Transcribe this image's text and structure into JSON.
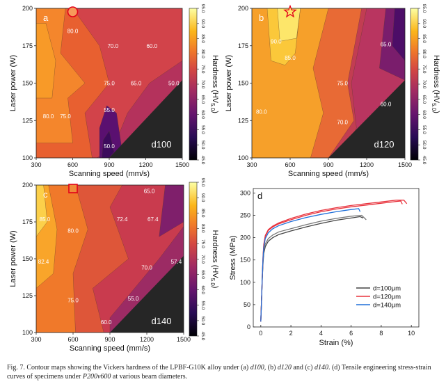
{
  "colorbar": {
    "ticks": [
      "95.0",
      "90.0",
      "85.0",
      "80.0",
      "75.0",
      "70.0",
      "65.0",
      "60.0",
      "55.0",
      "50.0",
      "45.0"
    ],
    "label_main": "Hardness (HV",
    "label_sub": "5.0",
    "label_end": ")"
  },
  "caption": {
    "lead": "Fig. 7. Contour maps showing the Vickers hardness of the LPBF-G10K alloy under (a) ",
    "d1": "d100",
    "mid1": ", (b) ",
    "d2": "d120",
    "mid2": " and (c) ",
    "d3": "d140",
    "mid3": ". (d) Tensile engineering stress-strain curves of specimens under ",
    "cond": "P200v600",
    "tail": " at various beam diameters."
  },
  "chart_data": [
    {
      "type": "heatmap",
      "panel": "a",
      "name": "d100",
      "xlabel": "Scanning speed (mm/s)",
      "ylabel": "Laser power (W)",
      "xlim": [
        300,
        1500
      ],
      "ylim": [
        100,
        200
      ],
      "xticks": [
        "300",
        "600",
        "900",
        "1200",
        "1500"
      ],
      "yticks": [
        "100",
        "125",
        "150",
        "175",
        "200"
      ],
      "colorbar_range": [
        45,
        95
      ],
      "marker": {
        "shape": "circle",
        "x": 600,
        "y": 200
      },
      "contour_labels": [
        {
          "text": "80.0",
          "x": 600,
          "y": 185
        },
        {
          "text": "70.0",
          "x": 930,
          "y": 175
        },
        {
          "text": "60.0",
          "x": 1250,
          "y": 175
        },
        {
          "text": "75.0",
          "x": 900,
          "y": 150
        },
        {
          "text": "65.0",
          "x": 1120,
          "y": 150
        },
        {
          "text": "50.0",
          "x": 1430,
          "y": 150
        },
        {
          "text": "80.0",
          "x": 400,
          "y": 128
        },
        {
          "text": "75.0",
          "x": 540,
          "y": 128
        },
        {
          "text": "55.0",
          "x": 900,
          "y": 132
        },
        {
          "text": "50.0",
          "x": 900,
          "y": 108
        }
      ],
      "no_data_triangle": [
        [
          900,
          100
        ],
        [
          1500,
          100
        ],
        [
          1500,
          152
        ]
      ]
    },
    {
      "type": "heatmap",
      "panel": "b",
      "name": "d120",
      "xlabel": "Scanning speed (mm/s)",
      "ylabel": "Laser power (W)",
      "xlim": [
        300,
        1500
      ],
      "ylim": [
        100,
        200
      ],
      "xticks": [
        "300",
        "600",
        "900",
        "1200",
        "1500"
      ],
      "yticks": [
        "100",
        "125",
        "150",
        "175",
        "200"
      ],
      "colorbar_range": [
        45,
        95
      ],
      "marker": {
        "shape": "star",
        "x": 600,
        "y": 200
      },
      "contour_labels": [
        {
          "text": "90.0",
          "x": 490,
          "y": 178
        },
        {
          "text": "85.0",
          "x": 600,
          "y": 167
        },
        {
          "text": "65.0",
          "x": 1350,
          "y": 176
        },
        {
          "text": "75.0",
          "x": 1010,
          "y": 150
        },
        {
          "text": "60.0",
          "x": 1350,
          "y": 136
        },
        {
          "text": "80.0",
          "x": 375,
          "y": 131
        },
        {
          "text": "70.0",
          "x": 1010,
          "y": 124
        }
      ],
      "no_data_triangle": [
        [
          900,
          100
        ],
        [
          1500,
          100
        ],
        [
          1500,
          152
        ]
      ]
    },
    {
      "type": "heatmap",
      "panel": "c",
      "name": "d140",
      "xlabel": "Scanning speed (mm/s)",
      "ylabel": "Laser power (W)",
      "xlim": [
        300,
        1500
      ],
      "ylim": [
        100,
        200
      ],
      "xticks": [
        "300",
        "600",
        "900",
        "1200",
        "1500"
      ],
      "yticks": [
        "100",
        "125",
        "150",
        "175",
        "200"
      ],
      "colorbar_range": [
        45,
        95
      ],
      "marker": {
        "shape": "square",
        "x": 600,
        "y": 200
      },
      "contour_labels": [
        {
          "text": "65.0",
          "x": 1220,
          "y": 196
        },
        {
          "text": "85.0",
          "x": 370,
          "y": 177
        },
        {
          "text": "72.4",
          "x": 1000,
          "y": 177
        },
        {
          "text": "67.4",
          "x": 1250,
          "y": 177
        },
        {
          "text": "80.0",
          "x": 600,
          "y": 169
        },
        {
          "text": "82.4",
          "x": 360,
          "y": 148
        },
        {
          "text": "70.0",
          "x": 1200,
          "y": 144
        },
        {
          "text": "57.4",
          "x": 1440,
          "y": 148
        },
        {
          "text": "75.0",
          "x": 600,
          "y": 122
        },
        {
          "text": "55.0",
          "x": 1090,
          "y": 123
        },
        {
          "text": "60.0",
          "x": 870,
          "y": 107
        }
      ],
      "no_data_triangle": [
        [
          900,
          100
        ],
        [
          1500,
          100
        ],
        [
          1500,
          152
        ]
      ]
    },
    {
      "type": "line",
      "panel": "d",
      "xlabel": "Strain (%)",
      "ylabel": "Stress (MPa)",
      "xlim": [
        -0.5,
        10.5
      ],
      "ylim": [
        0,
        310
      ],
      "xticks": [
        "0",
        "2",
        "4",
        "6",
        "8",
        "10"
      ],
      "yticks": [
        "0",
        "50",
        "100",
        "150",
        "200",
        "250",
        "300"
      ],
      "legend_position": "bottom-right",
      "series": [
        {
          "name": "d=100μm",
          "color": "#444444",
          "points": [
            [
              0,
              12
            ],
            [
              0.05,
              60
            ],
            [
              0.1,
              110
            ],
            [
              0.15,
              145
            ],
            [
              0.2,
              165
            ],
            [
              0.3,
              180
            ],
            [
              0.5,
              192
            ],
            [
              0.8,
              200
            ],
            [
              1.2,
              207
            ],
            [
              2,
              215
            ],
            [
              3,
              224
            ],
            [
              4,
              232
            ],
            [
              5,
              239
            ],
            [
              6,
              244
            ],
            [
              6.6,
              247
            ],
            [
              6.8,
              244
            ]
          ]
        },
        {
          "name": "d=100μm",
          "color": "#777777",
          "points": [
            [
              0,
              12
            ],
            [
              0.05,
              60
            ],
            [
              0.1,
              110
            ],
            [
              0.15,
              150
            ],
            [
              0.2,
              170
            ],
            [
              0.3,
              186
            ],
            [
              0.5,
              198
            ],
            [
              0.8,
              206
            ],
            [
              1.2,
              213
            ],
            [
              2,
              220
            ],
            [
              3,
              229
            ],
            [
              4,
              237
            ],
            [
              5,
              243
            ],
            [
              6,
              248
            ],
            [
              6.7,
              250
            ],
            [
              7,
              240
            ]
          ]
        },
        {
          "name": "d=120μm",
          "color": "#e8323c",
          "points": [
            [
              0,
              12
            ],
            [
              0.05,
              60
            ],
            [
              0.1,
              115
            ],
            [
              0.15,
              160
            ],
            [
              0.2,
              185
            ],
            [
              0.3,
              205
            ],
            [
              0.5,
              218
            ],
            [
              0.8,
              226
            ],
            [
              1.2,
              233
            ],
            [
              2,
              243
            ],
            [
              3,
              253
            ],
            [
              4,
              261
            ],
            [
              5,
              267
            ],
            [
              6,
              272
            ],
            [
              7,
              276
            ],
            [
              8,
              280
            ],
            [
              9,
              284
            ],
            [
              9.5,
              284
            ],
            [
              9.7,
              276
            ]
          ]
        },
        {
          "name": "d=120μm",
          "color": "#e8323c",
          "points": [
            [
              0,
              12
            ],
            [
              0.05,
              60
            ],
            [
              0.1,
              115
            ],
            [
              0.15,
              158
            ],
            [
              0.2,
              182
            ],
            [
              0.3,
              203
            ],
            [
              0.5,
              216
            ],
            [
              0.8,
              224
            ],
            [
              1.2,
              231
            ],
            [
              2,
              240
            ],
            [
              3,
              250
            ],
            [
              4,
              258
            ],
            [
              5,
              264
            ],
            [
              6,
              269
            ],
            [
              7,
              273
            ],
            [
              8,
              277
            ],
            [
              9,
              281
            ],
            [
              9.3,
              282
            ],
            [
              9.4,
              275
            ]
          ]
        },
        {
          "name": "d=140μm",
          "color": "#1e6fd9",
          "points": [
            [
              0,
              12
            ],
            [
              0.05,
              60
            ],
            [
              0.1,
              115
            ],
            [
              0.15,
              155
            ],
            [
              0.2,
              178
            ],
            [
              0.3,
              198
            ],
            [
              0.5,
              211
            ],
            [
              0.8,
              220
            ],
            [
              1.2,
              227
            ],
            [
              2,
              236
            ],
            [
              3,
              245
            ],
            [
              4,
              252
            ],
            [
              5,
              258
            ],
            [
              6,
              263
            ],
            [
              6.5,
              265
            ],
            [
              6.6,
              258
            ]
          ]
        }
      ],
      "legend": [
        "d=100μm",
        "d=120μm",
        "d=140μm"
      ],
      "legend_colors": [
        "#444444",
        "#e8323c",
        "#1e6fd9"
      ]
    }
  ]
}
